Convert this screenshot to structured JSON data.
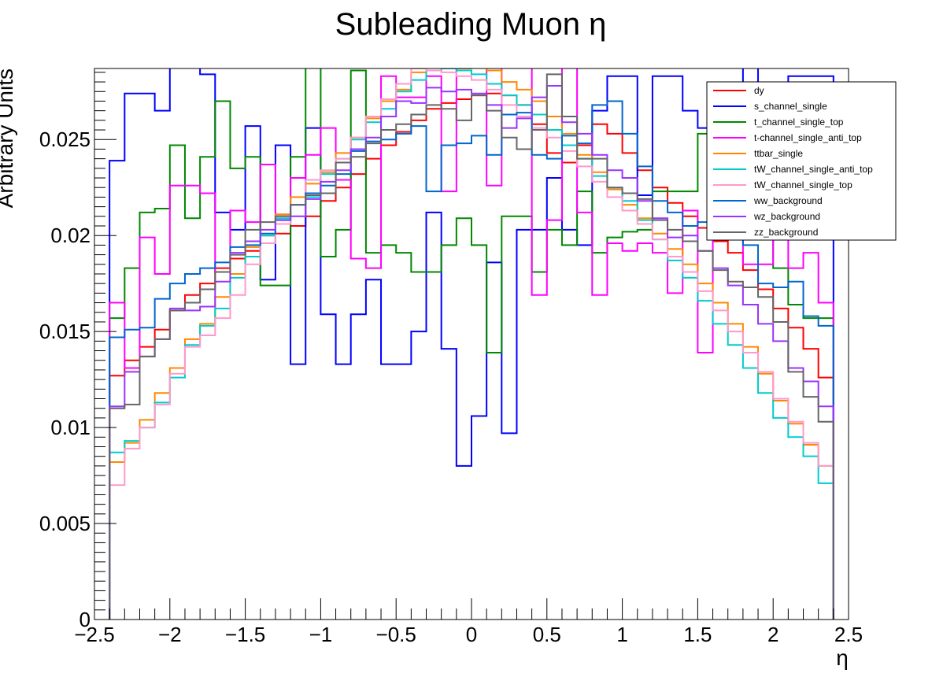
{
  "chart_data": {
    "type": "line",
    "title": "Subleading Muon η",
    "xlabel": "η",
    "ylabel": "Arbitrary Units",
    "xlim": [
      -2.5,
      2.5
    ],
    "ylim": [
      0,
      0.0287
    ],
    "xticks": [
      "−2.5",
      "−2",
      "−1.5",
      "−1",
      "−0.5",
      "0",
      "0.5",
      "1",
      "1.5",
      "2",
      "2.5"
    ],
    "xtick_values": [
      -2.5,
      -2,
      -1.5,
      -1,
      -0.5,
      0,
      0.5,
      1,
      1.5,
      2,
      2.5
    ],
    "yticks": [
      "0",
      "0.005",
      "0.01",
      "0.015",
      "0.02",
      "0.025"
    ],
    "ytick_values": [
      0,
      0.005,
      0.01,
      0.015,
      0.02,
      0.025
    ],
    "grid": false,
    "legend_position": "top-right",
    "histogram": {
      "x_low": -2.4,
      "bin_width": 0.1,
      "n_bins": 48
    },
    "series": [
      {
        "name": "dy",
        "color": "#ff0000",
        "values": [
          0.0127,
          0.0135,
          0.0142,
          0.0151,
          0.0161,
          0.0169,
          0.0175,
          0.0183,
          0.0188,
          0.0192,
          0.0196,
          0.0201,
          0.0205,
          0.021,
          0.0218,
          0.0225,
          0.0232,
          0.024,
          0.0247,
          0.0254,
          0.026,
          0.0266,
          0.0269,
          0.0271,
          0.0273,
          0.0274,
          0.0273,
          0.0268,
          0.0258,
          0.0243,
          0.0238,
          0.0247,
          0.0258,
          0.0253,
          0.0243,
          0.0234,
          0.0225,
          0.0217,
          0.021,
          0.0204,
          0.0197,
          0.0191,
          0.0182,
          0.0172,
          0.0162,
          0.0152,
          0.0141,
          0.0126
        ]
      },
      {
        "name": "s_channel_single",
        "color": "#0000ff",
        "values": [
          0.0239,
          0.0274,
          0.0274,
          0.0265,
          0.0297,
          0.0293,
          0.0284,
          0.0212,
          0.0203,
          0.0257,
          0.0177,
          0.0247,
          0.0133,
          0.0256,
          0.0159,
          0.0133,
          0.0159,
          0.0177,
          0.0133,
          0.0133,
          0.015,
          0.0212,
          0.0141,
          0.008,
          0.0106,
          0.0186,
          0.0097,
          0.0203,
          0.0203,
          0.023,
          0.0203,
          0.0195,
          0.0265,
          0.0283,
          0.0283,
          0.0221,
          0.0283,
          0.0283,
          0.0265,
          0.0256,
          0.0274,
          0.0274,
          0.0301,
          0.0274,
          0.0274,
          0.0283,
          0.0283,
          0.0283
        ]
      },
      {
        "name": "t_channel_single_top",
        "color": "#008800",
        "values": [
          0.0157,
          0.0183,
          0.0212,
          0.0214,
          0.0247,
          0.0209,
          0.0241,
          0.027,
          0.0235,
          0.0241,
          0.0174,
          0.0174,
          0.0241,
          0.0291,
          0.0189,
          0.0203,
          0.0286,
          0.0191,
          0.0195,
          0.0191,
          0.0181,
          0.0181,
          0.0195,
          0.0209,
          0.0195,
          0.0139,
          0.021,
          0.021,
          0.0181,
          0.0203,
          0.0195,
          0.0223,
          0.0191,
          0.0199,
          0.0202,
          0.0203,
          0.0223,
          0.0223,
          0.0223,
          0.0253,
          0.0265,
          0.0265,
          0.0267,
          0.02,
          0.0183,
          0.0164,
          0.0157,
          0.0157
        ]
      },
      {
        "name": "t-channel_single_anti_top",
        "color": "#ff00ff",
        "values": [
          0.0165,
          0.0131,
          0.0199,
          0.018,
          0.0226,
          0.0226,
          0.0222,
          0.0181,
          0.0213,
          0.0207,
          0.0237,
          0.0211,
          0.023,
          0.0242,
          0.0256,
          0.0229,
          0.0188,
          0.0183,
          0.0283,
          0.0272,
          0.0272,
          0.0283,
          0.0223,
          0.0293,
          0.0292,
          0.0226,
          0.0292,
          0.0294,
          0.0169,
          0.0208,
          0.0295,
          0.0212,
          0.0169,
          0.0196,
          0.0192,
          0.0196,
          0.0191,
          0.017,
          0.0213,
          0.0139,
          0.0245,
          0.024,
          0.0185,
          0.0185,
          0.0222,
          0.0183,
          0.0191,
          0.0165
        ]
      },
      {
        "name": "ttbar_single",
        "color": "#ff8800",
        "values": [
          0.0082,
          0.0092,
          0.0104,
          0.0118,
          0.0131,
          0.0146,
          0.0154,
          0.0168,
          0.018,
          0.0194,
          0.02,
          0.0211,
          0.022,
          0.0227,
          0.0233,
          0.0243,
          0.0251,
          0.0261,
          0.027,
          0.0276,
          0.0285,
          0.0286,
          0.0287,
          0.0287,
          0.0288,
          0.0286,
          0.028,
          0.0276,
          0.027,
          0.0262,
          0.0253,
          0.0242,
          0.0233,
          0.0224,
          0.0216,
          0.0209,
          0.0201,
          0.0193,
          0.0185,
          0.0175,
          0.0165,
          0.0154,
          0.0142,
          0.0128,
          0.0114,
          0.0102,
          0.0091,
          0.008
        ]
      },
      {
        "name": "tW_channel_single_anti_top",
        "color": "#00cccc",
        "values": [
          0.0087,
          0.0093,
          0.01,
          0.0113,
          0.0126,
          0.0143,
          0.0153,
          0.0162,
          0.0178,
          0.0189,
          0.02,
          0.0209,
          0.0216,
          0.022,
          0.0232,
          0.024,
          0.025,
          0.0259,
          0.0266,
          0.0275,
          0.0281,
          0.0286,
          0.0287,
          0.0286,
          0.0284,
          0.0279,
          0.0273,
          0.0268,
          0.0263,
          0.0255,
          0.0247,
          0.024,
          0.0231,
          0.0225,
          0.0218,
          0.0208,
          0.0198,
          0.0187,
          0.0178,
          0.0166,
          0.0154,
          0.0143,
          0.0131,
          0.0118,
          0.0105,
          0.0095,
          0.0085,
          0.0071
        ]
      },
      {
        "name": "tW_channel_single_top",
        "color": "#ff99cc",
        "values": [
          0.007,
          0.0089,
          0.01,
          0.0112,
          0.0128,
          0.0142,
          0.0148,
          0.0157,
          0.0169,
          0.0185,
          0.0196,
          0.0206,
          0.0216,
          0.0229,
          0.0234,
          0.024,
          0.0251,
          0.0262,
          0.0271,
          0.0279,
          0.0287,
          0.0286,
          0.0285,
          0.0283,
          0.0281,
          0.0276,
          0.0268,
          0.0262,
          0.0256,
          0.0251,
          0.0244,
          0.0236,
          0.0228,
          0.022,
          0.0213,
          0.0206,
          0.0198,
          0.0189,
          0.0181,
          0.0171,
          0.0161,
          0.015,
          0.0139,
          0.0129,
          0.0115,
          0.0103,
          0.0092,
          0.008
        ]
      },
      {
        "name": "ww_background",
        "color": "#0066cc",
        "values": [
          0.0147,
          0.0151,
          0.0152,
          0.0167,
          0.0175,
          0.018,
          0.0183,
          0.0186,
          0.0194,
          0.0195,
          0.0201,
          0.0208,
          0.0216,
          0.0222,
          0.0226,
          0.0232,
          0.0244,
          0.0249,
          0.025,
          0.0253,
          0.0257,
          0.0223,
          0.0247,
          0.0248,
          0.0252,
          0.0242,
          0.0263,
          0.0264,
          0.0242,
          0.024,
          0.0252,
          0.0248,
          0.0268,
          0.027,
          0.0253,
          0.0236,
          0.0218,
          0.0212,
          0.0205,
          0.0207,
          0.0206,
          0.0201,
          0.0195,
          0.0175,
          0.0173,
          0.0176,
          0.0158,
          0.0153
        ]
      },
      {
        "name": "wz_background",
        "color": "#9933ff",
        "values": [
          0.0111,
          0.0129,
          0.0137,
          0.0146,
          0.0162,
          0.0161,
          0.0163,
          0.0176,
          0.0191,
          0.0197,
          0.0203,
          0.0208,
          0.021,
          0.0219,
          0.0228,
          0.0234,
          0.0245,
          0.0251,
          0.0262,
          0.027,
          0.0269,
          0.0277,
          0.0275,
          0.0276,
          0.0274,
          0.0268,
          0.0256,
          0.0261,
          0.0272,
          0.0278,
          0.0259,
          0.0253,
          0.0242,
          0.0234,
          0.023,
          0.0218,
          0.0209,
          0.0199,
          0.02,
          0.0192,
          0.0183,
          0.0174,
          0.0164,
          0.0154,
          0.0145,
          0.0131,
          0.0124,
          0.0111
        ]
      },
      {
        "name": "zz_background",
        "color": "#666666",
        "values": [
          0.011,
          0.0112,
          0.0137,
          0.0146,
          0.0161,
          0.0165,
          0.0172,
          0.0181,
          0.019,
          0.0203,
          0.0207,
          0.021,
          0.0216,
          0.0221,
          0.0222,
          0.0238,
          0.0241,
          0.0248,
          0.0255,
          0.0258,
          0.0263,
          0.0268,
          0.0266,
          0.026,
          0.0273,
          0.0265,
          0.0251,
          0.0245,
          0.0255,
          0.0284,
          0.0262,
          0.024,
          0.024,
          0.0225,
          0.0222,
          0.0219,
          0.0208,
          0.0203,
          0.0197,
          0.0192,
          0.0182,
          0.0176,
          0.0173,
          0.0168,
          0.0155,
          0.0129,
          0.0116,
          0.0103
        ]
      }
    ]
  }
}
